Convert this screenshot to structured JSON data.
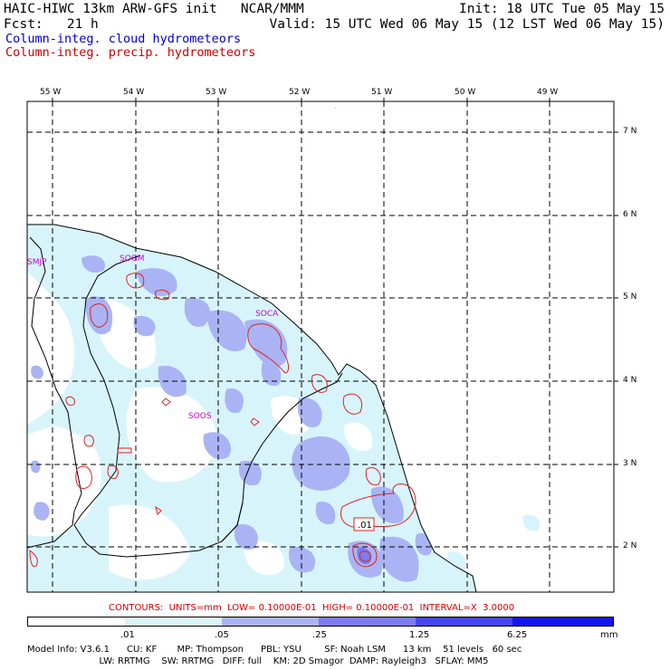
{
  "header": {
    "model_title": "HAIC-HIWC 13km ARW-GFS init   NCAR/MMM",
    "init": "Init: 18 UTC Tue 05 May 15",
    "fcst": "Fcst:   21 h",
    "valid": "Valid: 15 UTC Wed 06 May 15 (12 LST Wed 06 May 15)",
    "field_cloud": "Column-integ. cloud hydrometeors",
    "field_precip": "Column-integ. precip. hydrometeors"
  },
  "map": {
    "lon_labels": [
      "55 W",
      "54 W",
      "53 W",
      "52 W",
      "51 W",
      "50 W",
      "49 W"
    ],
    "lat_labels": [
      "7 N",
      "6 N",
      "5 N",
      "4 N",
      "3 N",
      "2 N"
    ],
    "stations": [
      "SMJP",
      "SOGM",
      "SOCA",
      "SOOS"
    ],
    "contour_label": ".01"
  },
  "contours_line": "CONTOURS:  UNITS=mm  LOW= 0.10000E-01  HIGH= 0.10000E-01  INTERVAL=X  3.0000",
  "colorbar": {
    "labels": [
      ".01",
      ".05",
      ".25",
      "1.25",
      "6.25"
    ],
    "units": "mm",
    "colors": [
      "#ffffff",
      "#d8f4fb",
      "#aab4f4",
      "#7c7cf0",
      "#4646f0",
      "#1414ec"
    ]
  },
  "footer": {
    "line1": "Model Info: V3.6.1      CU: KF       MP: Thompson      PBL: YSU        SF: Noah LSM      13 km    51 levels   60 sec",
    "line2": "                         LW: RRTMG    SW: RRTMG   DIFF: full    KM: 2D Smagor  DAMP: Rayleigh3   SFLAY: MM5"
  },
  "colors": {
    "cloud_label": "#0000cc",
    "precip_label": "#cc0000",
    "station": "#cc00cc",
    "contour": "#dd2222"
  }
}
